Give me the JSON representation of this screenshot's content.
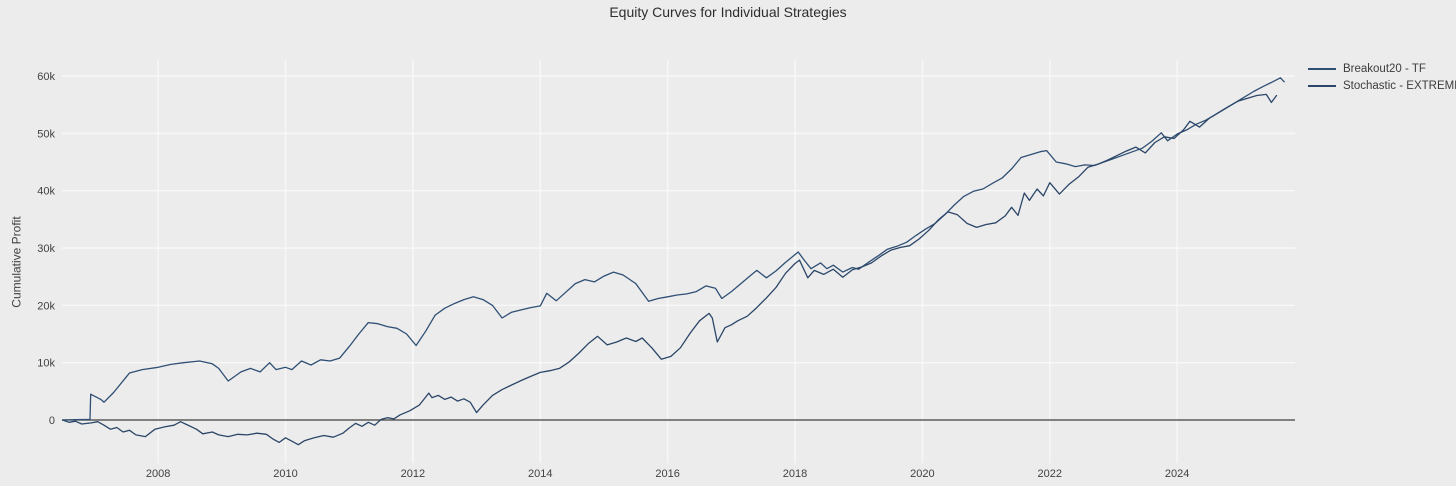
{
  "chart_data": {
    "type": "line",
    "title": "Equity Curves for Individual Strategies",
    "xlabel": "",
    "ylabel": "Cumulative Profit",
    "grid": true,
    "zeroline": true,
    "legend_position": "outside-top-right",
    "xlim": [
      2006.49,
      2025.85
    ],
    "ylim": [
      -7500,
      62800
    ],
    "x_tick_values": [
      2008,
      2010,
      2012,
      2014,
      2016,
      2018,
      2020,
      2022,
      2024
    ],
    "x_tick_labels": [
      "2008",
      "2010",
      "2012",
      "2014",
      "2016",
      "2018",
      "2020",
      "2022",
      "2024"
    ],
    "y_tick_values": [
      0,
      10000,
      20000,
      30000,
      40000,
      50000,
      60000
    ],
    "y_tick_labels": [
      "0",
      "10k",
      "20k",
      "30k",
      "40k",
      "50k",
      "60k"
    ],
    "colors": {
      "background": "#ececec",
      "gridline": "#f8f8f8",
      "zeroline": "#3f3f3f",
      "text": "#3d3d3d"
    },
    "series": [
      {
        "name": "Breakout20 - TF",
        "color": "#2f4f74",
        "points": [
          [
            2006.5,
            0
          ],
          [
            2006.7,
            50
          ],
          [
            2006.93,
            100
          ],
          [
            2006.94,
            4500
          ],
          [
            2007.1,
            3600
          ],
          [
            2007.15,
            3100
          ],
          [
            2007.3,
            4800
          ],
          [
            2007.55,
            8200
          ],
          [
            2007.75,
            8800
          ],
          [
            2008.0,
            9200
          ],
          [
            2008.2,
            9700
          ],
          [
            2008.4,
            10000
          ],
          [
            2008.65,
            10300
          ],
          [
            2008.85,
            9800
          ],
          [
            2008.95,
            9000
          ],
          [
            2009.1,
            6800
          ],
          [
            2009.3,
            8400
          ],
          [
            2009.45,
            9000
          ],
          [
            2009.6,
            8400
          ],
          [
            2009.75,
            10000
          ],
          [
            2009.85,
            8800
          ],
          [
            2010.0,
            9200
          ],
          [
            2010.1,
            8800
          ],
          [
            2010.25,
            10300
          ],
          [
            2010.4,
            9600
          ],
          [
            2010.55,
            10500
          ],
          [
            2010.7,
            10300
          ],
          [
            2010.85,
            10800
          ],
          [
            2011.0,
            12800
          ],
          [
            2011.15,
            15000
          ],
          [
            2011.3,
            17000
          ],
          [
            2011.45,
            16800
          ],
          [
            2011.6,
            16300
          ],
          [
            2011.75,
            16000
          ],
          [
            2011.9,
            15000
          ],
          [
            2012.05,
            13000
          ],
          [
            2012.2,
            15500
          ],
          [
            2012.35,
            18300
          ],
          [
            2012.5,
            19500
          ],
          [
            2012.65,
            20300
          ],
          [
            2012.8,
            21000
          ],
          [
            2012.95,
            21500
          ],
          [
            2013.1,
            21000
          ],
          [
            2013.25,
            20000
          ],
          [
            2013.4,
            17800
          ],
          [
            2013.55,
            18800
          ],
          [
            2013.7,
            19200
          ],
          [
            2013.85,
            19600
          ],
          [
            2014.0,
            19900
          ],
          [
            2014.1,
            22100
          ],
          [
            2014.25,
            20800
          ],
          [
            2014.4,
            22300
          ],
          [
            2014.55,
            23800
          ],
          [
            2014.7,
            24500
          ],
          [
            2014.85,
            24100
          ],
          [
            2015.0,
            25100
          ],
          [
            2015.15,
            25800
          ],
          [
            2015.3,
            25300
          ],
          [
            2015.5,
            23800
          ],
          [
            2015.7,
            20700
          ],
          [
            2015.85,
            21200
          ],
          [
            2016.0,
            21500
          ],
          [
            2016.15,
            21800
          ],
          [
            2016.3,
            22000
          ],
          [
            2016.45,
            22400
          ],
          [
            2016.6,
            23400
          ],
          [
            2016.75,
            23000
          ],
          [
            2016.85,
            21200
          ],
          [
            2017.0,
            22400
          ],
          [
            2017.15,
            23800
          ],
          [
            2017.3,
            25200
          ],
          [
            2017.4,
            26100
          ],
          [
            2017.55,
            24800
          ],
          [
            2017.7,
            26000
          ],
          [
            2017.85,
            27500
          ],
          [
            2018.05,
            29300
          ],
          [
            2018.15,
            27800
          ],
          [
            2018.25,
            26400
          ],
          [
            2018.4,
            27400
          ],
          [
            2018.5,
            26400
          ],
          [
            2018.6,
            27000
          ],
          [
            2018.75,
            25800
          ],
          [
            2018.9,
            26600
          ],
          [
            2019.0,
            26300
          ],
          [
            2019.15,
            27500
          ],
          [
            2019.3,
            28600
          ],
          [
            2019.45,
            29800
          ],
          [
            2019.6,
            30300
          ],
          [
            2019.75,
            31000
          ],
          [
            2019.9,
            32200
          ],
          [
            2020.05,
            33300
          ],
          [
            2020.2,
            34300
          ],
          [
            2020.35,
            35800
          ],
          [
            2020.5,
            37500
          ],
          [
            2020.65,
            39000
          ],
          [
            2020.8,
            39900
          ],
          [
            2020.95,
            40300
          ],
          [
            2021.1,
            41300
          ],
          [
            2021.25,
            42200
          ],
          [
            2021.4,
            43800
          ],
          [
            2021.55,
            45800
          ],
          [
            2021.7,
            46300
          ],
          [
            2021.85,
            46800
          ],
          [
            2021.95,
            47000
          ],
          [
            2022.1,
            45000
          ],
          [
            2022.25,
            44700
          ],
          [
            2022.4,
            44200
          ],
          [
            2022.55,
            44500
          ],
          [
            2022.7,
            44400
          ],
          [
            2022.85,
            45000
          ],
          [
            2023.0,
            45600
          ],
          [
            2023.15,
            46200
          ],
          [
            2023.3,
            46800
          ],
          [
            2023.45,
            47400
          ],
          [
            2023.6,
            48600
          ],
          [
            2023.75,
            50100
          ],
          [
            2023.85,
            48700
          ],
          [
            2024.0,
            49900
          ],
          [
            2024.15,
            50600
          ],
          [
            2024.3,
            51600
          ],
          [
            2024.45,
            52300
          ],
          [
            2024.6,
            53300
          ],
          [
            2024.75,
            54300
          ],
          [
            2024.9,
            55300
          ],
          [
            2025.05,
            56300
          ],
          [
            2025.2,
            57300
          ],
          [
            2025.35,
            58200
          ],
          [
            2025.5,
            59000
          ],
          [
            2025.62,
            59700
          ],
          [
            2025.68,
            59000
          ]
        ]
      },
      {
        "name": "Stochastic - EXTREMES",
        "color": "#2b4668",
        "points": [
          [
            2006.5,
            0
          ],
          [
            2006.6,
            -400
          ],
          [
            2006.7,
            -200
          ],
          [
            2006.8,
            -700
          ],
          [
            2006.95,
            -500
          ],
          [
            2007.05,
            -300
          ],
          [
            2007.15,
            -900
          ],
          [
            2007.25,
            -1600
          ],
          [
            2007.35,
            -1300
          ],
          [
            2007.45,
            -2100
          ],
          [
            2007.55,
            -1800
          ],
          [
            2007.65,
            -2600
          ],
          [
            2007.8,
            -2900
          ],
          [
            2007.95,
            -1600
          ],
          [
            2008.1,
            -1200
          ],
          [
            2008.25,
            -900
          ],
          [
            2008.35,
            -300
          ],
          [
            2008.45,
            -800
          ],
          [
            2008.6,
            -1600
          ],
          [
            2008.7,
            -2400
          ],
          [
            2008.85,
            -2100
          ],
          [
            2008.95,
            -2600
          ],
          [
            2009.1,
            -2900
          ],
          [
            2009.25,
            -2500
          ],
          [
            2009.4,
            -2600
          ],
          [
            2009.55,
            -2300
          ],
          [
            2009.7,
            -2500
          ],
          [
            2009.8,
            -3300
          ],
          [
            2009.9,
            -3900
          ],
          [
            2010.0,
            -3100
          ],
          [
            2010.1,
            -3700
          ],
          [
            2010.2,
            -4300
          ],
          [
            2010.3,
            -3600
          ],
          [
            2010.45,
            -3100
          ],
          [
            2010.6,
            -2700
          ],
          [
            2010.75,
            -3000
          ],
          [
            2010.9,
            -2300
          ],
          [
            2011.0,
            -1400
          ],
          [
            2011.1,
            -600
          ],
          [
            2011.2,
            -1100
          ],
          [
            2011.3,
            -400
          ],
          [
            2011.4,
            -900
          ],
          [
            2011.5,
            100
          ],
          [
            2011.6,
            400
          ],
          [
            2011.7,
            200
          ],
          [
            2011.8,
            900
          ],
          [
            2011.95,
            1600
          ],
          [
            2012.1,
            2600
          ],
          [
            2012.25,
            4700
          ],
          [
            2012.3,
            3900
          ],
          [
            2012.4,
            4300
          ],
          [
            2012.5,
            3600
          ],
          [
            2012.6,
            4000
          ],
          [
            2012.7,
            3300
          ],
          [
            2012.8,
            3700
          ],
          [
            2012.9,
            3100
          ],
          [
            2013.0,
            1300
          ],
          [
            2013.1,
            2600
          ],
          [
            2013.25,
            4300
          ],
          [
            2013.4,
            5300
          ],
          [
            2013.55,
            6100
          ],
          [
            2013.7,
            6900
          ],
          [
            2013.85,
            7600
          ],
          [
            2014.0,
            8300
          ],
          [
            2014.15,
            8600
          ],
          [
            2014.3,
            9000
          ],
          [
            2014.45,
            10100
          ],
          [
            2014.6,
            11600
          ],
          [
            2014.75,
            13300
          ],
          [
            2014.9,
            14600
          ],
          [
            2015.05,
            13100
          ],
          [
            2015.2,
            13600
          ],
          [
            2015.35,
            14300
          ],
          [
            2015.5,
            13700
          ],
          [
            2015.6,
            14300
          ],
          [
            2015.75,
            12600
          ],
          [
            2015.9,
            10600
          ],
          [
            2016.05,
            11100
          ],
          [
            2016.2,
            12600
          ],
          [
            2016.35,
            15100
          ],
          [
            2016.5,
            17300
          ],
          [
            2016.65,
            18600
          ],
          [
            2016.7,
            17800
          ],
          [
            2016.78,
            13600
          ],
          [
            2016.9,
            16100
          ],
          [
            2017.0,
            16600
          ],
          [
            2017.1,
            17300
          ],
          [
            2017.25,
            18100
          ],
          [
            2017.4,
            19600
          ],
          [
            2017.55,
            21300
          ],
          [
            2017.7,
            23100
          ],
          [
            2017.85,
            25600
          ],
          [
            2018.0,
            27300
          ],
          [
            2018.07,
            27900
          ],
          [
            2018.2,
            24800
          ],
          [
            2018.3,
            26100
          ],
          [
            2018.45,
            25400
          ],
          [
            2018.6,
            26300
          ],
          [
            2018.75,
            24900
          ],
          [
            2018.9,
            26200
          ],
          [
            2019.05,
            26700
          ],
          [
            2019.2,
            27400
          ],
          [
            2019.35,
            28600
          ],
          [
            2019.5,
            29600
          ],
          [
            2019.65,
            30100
          ],
          [
            2019.8,
            30400
          ],
          [
            2019.95,
            31600
          ],
          [
            2020.1,
            33100
          ],
          [
            2020.25,
            34900
          ],
          [
            2020.4,
            36300
          ],
          [
            2020.55,
            35800
          ],
          [
            2020.7,
            34300
          ],
          [
            2020.85,
            33600
          ],
          [
            2021.0,
            34100
          ],
          [
            2021.15,
            34400
          ],
          [
            2021.3,
            35600
          ],
          [
            2021.4,
            37100
          ],
          [
            2021.5,
            35700
          ],
          [
            2021.6,
            39600
          ],
          [
            2021.68,
            38300
          ],
          [
            2021.8,
            40300
          ],
          [
            2021.9,
            39100
          ],
          [
            2022.0,
            41400
          ],
          [
            2022.15,
            39400
          ],
          [
            2022.3,
            41100
          ],
          [
            2022.45,
            42400
          ],
          [
            2022.6,
            44100
          ],
          [
            2022.75,
            44600
          ],
          [
            2022.9,
            45300
          ],
          [
            2023.05,
            46100
          ],
          [
            2023.2,
            46900
          ],
          [
            2023.35,
            47600
          ],
          [
            2023.5,
            46600
          ],
          [
            2023.65,
            48400
          ],
          [
            2023.8,
            49400
          ],
          [
            2023.95,
            49100
          ],
          [
            2024.1,
            50600
          ],
          [
            2024.2,
            52100
          ],
          [
            2024.35,
            51100
          ],
          [
            2024.5,
            52600
          ],
          [
            2024.65,
            53600
          ],
          [
            2024.8,
            54600
          ],
          [
            2024.95,
            55600
          ],
          [
            2025.1,
            56100
          ],
          [
            2025.25,
            56600
          ],
          [
            2025.4,
            56800
          ],
          [
            2025.48,
            55400
          ],
          [
            2025.56,
            56600
          ]
        ]
      }
    ]
  }
}
